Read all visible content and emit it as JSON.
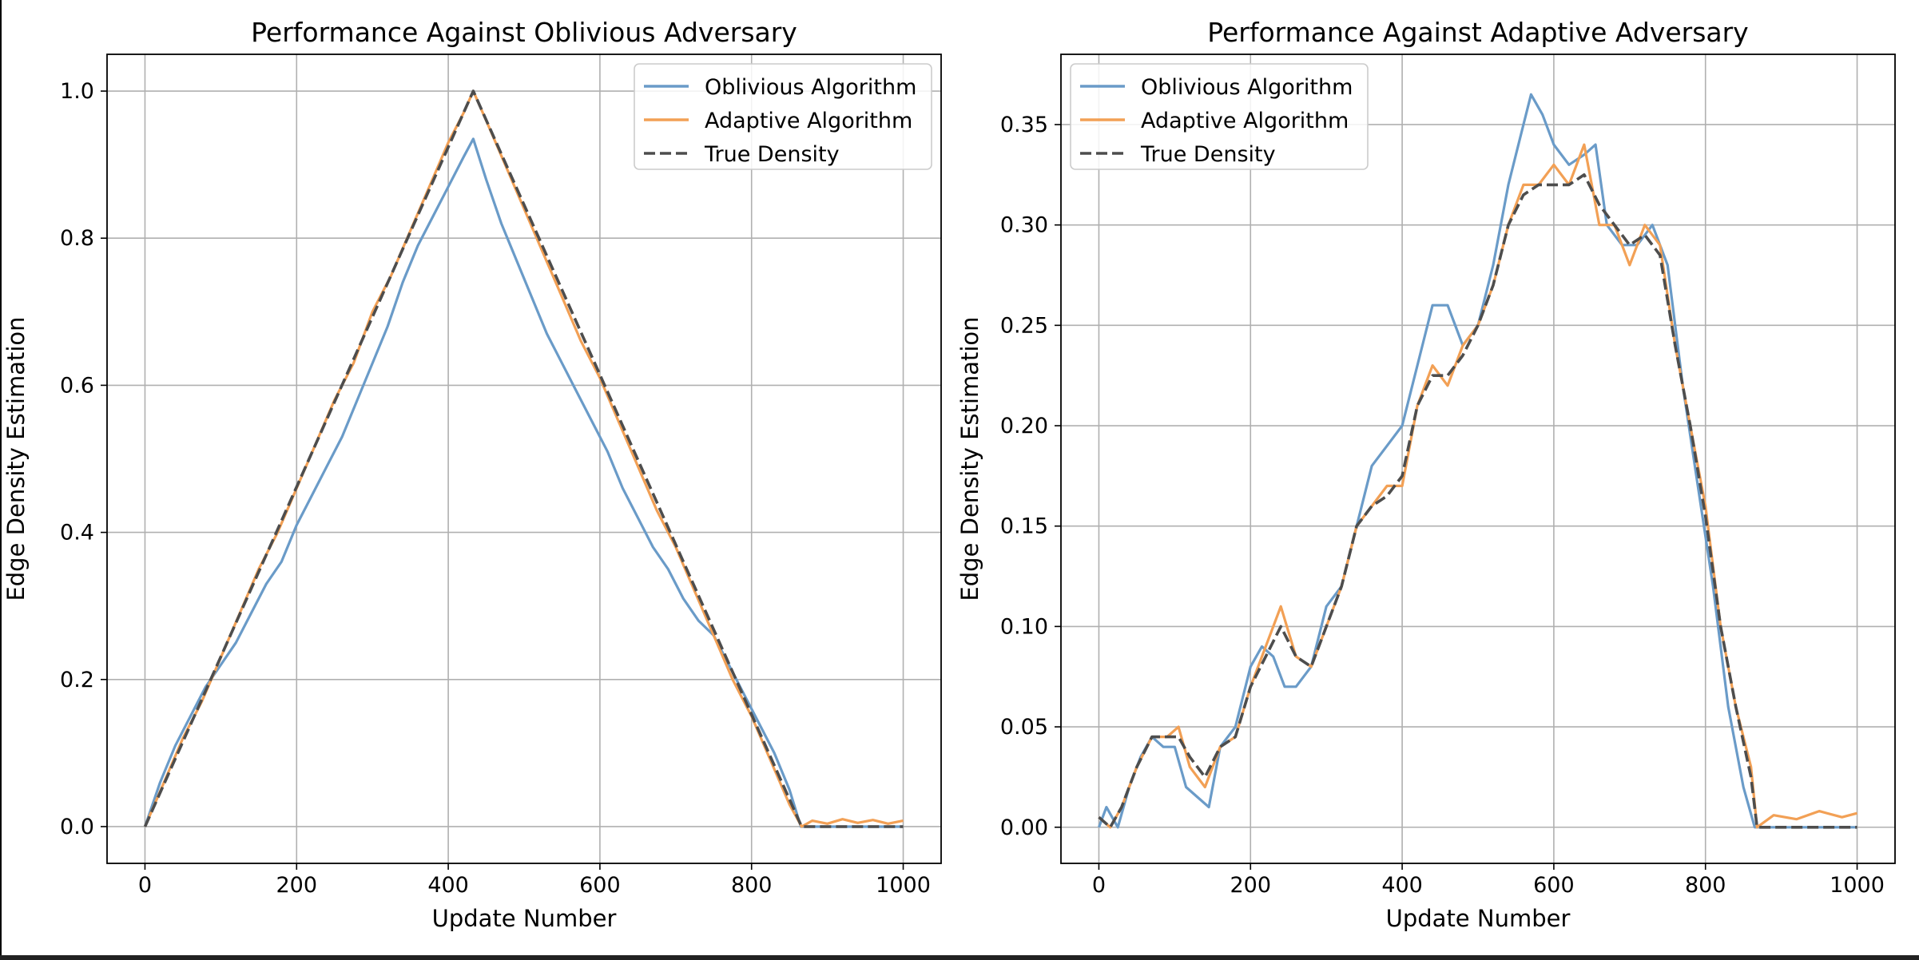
{
  "colors": {
    "oblivious": "#6a9bc8",
    "adaptive": "#f2a055",
    "true_density": "#4d4d4d",
    "grid": "#b0b0b0"
  },
  "chart_data": [
    {
      "type": "line",
      "title": "Performance Against Oblivious Adversary",
      "xlabel": "Update Number",
      "ylabel": "Edge Density Estimation",
      "xlim": [
        -50,
        1050
      ],
      "ylim": [
        -0.05,
        1.05
      ],
      "xticks": [
        0,
        200,
        400,
        600,
        800,
        1000
      ],
      "yticks": [
        0.0,
        0.2,
        0.4,
        0.6,
        0.8,
        1.0
      ],
      "ytick_labels": [
        "0.0",
        "0.2",
        "0.4",
        "0.6",
        "0.8",
        "1.0"
      ],
      "grid": true,
      "legend_position": "top-right",
      "series": [
        {
          "name": "Oblivious Algorithm",
          "style": "solid",
          "x": [
            0,
            20,
            40,
            60,
            80,
            100,
            120,
            140,
            160,
            180,
            200,
            220,
            240,
            260,
            280,
            300,
            320,
            340,
            360,
            380,
            400,
            420,
            433,
            450,
            470,
            490,
            510,
            530,
            550,
            570,
            590,
            610,
            630,
            650,
            670,
            690,
            710,
            730,
            750,
            770,
            790,
            810,
            830,
            850,
            865,
            900,
            950,
            1000
          ],
          "y": [
            0.0,
            0.06,
            0.11,
            0.15,
            0.19,
            0.22,
            0.25,
            0.29,
            0.33,
            0.36,
            0.41,
            0.45,
            0.49,
            0.53,
            0.58,
            0.63,
            0.68,
            0.74,
            0.79,
            0.83,
            0.87,
            0.91,
            0.935,
            0.88,
            0.82,
            0.77,
            0.72,
            0.67,
            0.63,
            0.59,
            0.55,
            0.51,
            0.46,
            0.42,
            0.38,
            0.35,
            0.31,
            0.28,
            0.26,
            0.22,
            0.18,
            0.14,
            0.1,
            0.05,
            0.0,
            0.0,
            0.0,
            0.0
          ]
        },
        {
          "name": "Adaptive Algorithm",
          "style": "solid",
          "x": [
            0,
            25,
            50,
            75,
            100,
            125,
            150,
            175,
            200,
            225,
            250,
            275,
            300,
            325,
            350,
            375,
            400,
            420,
            433,
            450,
            475,
            500,
            525,
            550,
            575,
            600,
            625,
            650,
            675,
            700,
            725,
            750,
            775,
            800,
            825,
            850,
            866,
            880,
            900,
            920,
            940,
            960,
            980,
            1000
          ],
          "y": [
            0.0,
            0.06,
            0.12,
            0.17,
            0.23,
            0.29,
            0.35,
            0.4,
            0.46,
            0.52,
            0.58,
            0.63,
            0.7,
            0.75,
            0.81,
            0.87,
            0.93,
            0.97,
            1.0,
            0.96,
            0.9,
            0.84,
            0.78,
            0.72,
            0.66,
            0.61,
            0.55,
            0.49,
            0.43,
            0.38,
            0.32,
            0.26,
            0.2,
            0.15,
            0.09,
            0.03,
            0.0,
            0.008,
            0.004,
            0.01,
            0.005,
            0.009,
            0.004,
            0.008
          ]
        },
        {
          "name": "True Density",
          "style": "dashed",
          "x": [
            0,
            433,
            866,
            1000
          ],
          "y": [
            0.0,
            1.0,
            0.0,
            0.0
          ]
        }
      ]
    },
    {
      "type": "line",
      "title": "Performance Against Adaptive Adversary",
      "xlabel": "Update Number",
      "ylabel": "Edge Density Estimation",
      "xlim": [
        -50,
        1050
      ],
      "ylim": [
        -0.018,
        0.385
      ],
      "xticks": [
        0,
        200,
        400,
        600,
        800,
        1000
      ],
      "yticks": [
        0.0,
        0.05,
        0.1,
        0.15,
        0.2,
        0.25,
        0.3,
        0.35
      ],
      "ytick_labels": [
        "0.00",
        "0.05",
        "0.10",
        "0.15",
        "0.20",
        "0.25",
        "0.30",
        "0.35"
      ],
      "grid": true,
      "legend_position": "top-left",
      "series": [
        {
          "name": "Oblivious Algorithm",
          "style": "solid",
          "x": [
            0,
            10,
            25,
            40,
            55,
            70,
            85,
            100,
            115,
            130,
            145,
            160,
            180,
            200,
            215,
            230,
            245,
            260,
            280,
            300,
            320,
            340,
            360,
            380,
            400,
            420,
            440,
            460,
            480,
            500,
            520,
            540,
            560,
            570,
            585,
            600,
            620,
            640,
            655,
            670,
            690,
            710,
            730,
            750,
            770,
            790,
            810,
            830,
            850,
            865,
            900,
            950,
            1000
          ],
          "y": [
            0.0,
            0.01,
            0.0,
            0.02,
            0.035,
            0.045,
            0.04,
            0.04,
            0.02,
            0.015,
            0.01,
            0.04,
            0.05,
            0.08,
            0.09,
            0.085,
            0.07,
            0.07,
            0.08,
            0.11,
            0.12,
            0.15,
            0.18,
            0.19,
            0.2,
            0.23,
            0.26,
            0.26,
            0.24,
            0.25,
            0.28,
            0.32,
            0.35,
            0.365,
            0.355,
            0.34,
            0.33,
            0.335,
            0.34,
            0.3,
            0.29,
            0.29,
            0.3,
            0.28,
            0.22,
            0.17,
            0.12,
            0.06,
            0.02,
            0.0,
            0.0,
            0.0,
            0.0
          ]
        },
        {
          "name": "Adaptive Algorithm",
          "style": "solid",
          "x": [
            0,
            15,
            30,
            50,
            70,
            90,
            105,
            120,
            140,
            160,
            180,
            200,
            220,
            240,
            260,
            280,
            300,
            320,
            340,
            360,
            380,
            400,
            420,
            440,
            460,
            480,
            500,
            520,
            540,
            560,
            580,
            600,
            620,
            640,
            660,
            680,
            700,
            720,
            740,
            760,
            780,
            800,
            820,
            840,
            860,
            868,
            890,
            920,
            950,
            980,
            1000
          ],
          "y": [
            0.005,
            0.0,
            0.01,
            0.03,
            0.045,
            0.045,
            0.05,
            0.03,
            0.02,
            0.04,
            0.045,
            0.07,
            0.09,
            0.11,
            0.085,
            0.08,
            0.1,
            0.12,
            0.15,
            0.16,
            0.17,
            0.17,
            0.21,
            0.23,
            0.22,
            0.24,
            0.25,
            0.27,
            0.3,
            0.32,
            0.32,
            0.33,
            0.32,
            0.34,
            0.3,
            0.3,
            0.28,
            0.3,
            0.29,
            0.24,
            0.2,
            0.16,
            0.1,
            0.06,
            0.03,
            0.0,
            0.006,
            0.004,
            0.008,
            0.005,
            0.007
          ]
        },
        {
          "name": "True Density",
          "style": "dashed",
          "x": [
            0,
            15,
            30,
            50,
            70,
            90,
            105,
            120,
            140,
            160,
            180,
            200,
            220,
            240,
            260,
            280,
            300,
            320,
            340,
            360,
            380,
            400,
            420,
            440,
            460,
            480,
            500,
            520,
            540,
            560,
            580,
            600,
            620,
            640,
            660,
            680,
            700,
            720,
            740,
            760,
            780,
            800,
            820,
            840,
            860,
            868,
            1000
          ],
          "y": [
            0.005,
            0.0,
            0.01,
            0.03,
            0.045,
            0.045,
            0.045,
            0.035,
            0.025,
            0.04,
            0.045,
            0.07,
            0.085,
            0.1,
            0.085,
            0.08,
            0.1,
            0.12,
            0.15,
            0.16,
            0.165,
            0.175,
            0.21,
            0.225,
            0.225,
            0.235,
            0.25,
            0.27,
            0.3,
            0.315,
            0.32,
            0.32,
            0.32,
            0.325,
            0.31,
            0.3,
            0.29,
            0.295,
            0.285,
            0.24,
            0.2,
            0.155,
            0.1,
            0.06,
            0.025,
            0.0,
            0.0
          ]
        }
      ]
    }
  ]
}
